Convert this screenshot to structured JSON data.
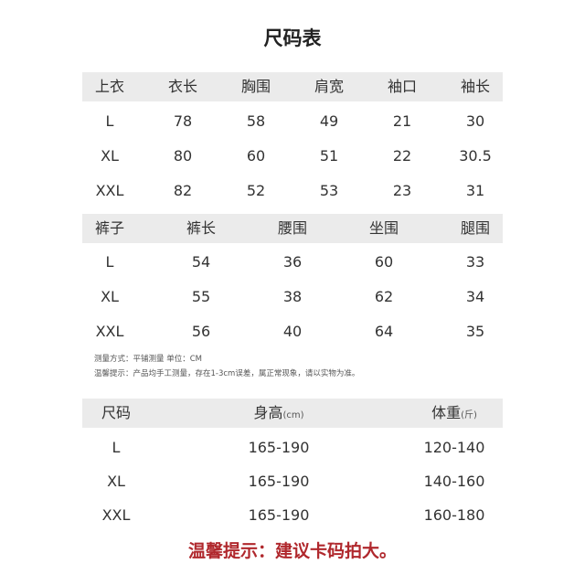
{
  "title": "尺码表",
  "top_table": {
    "headers": [
      "上衣",
      "衣长",
      "胸围",
      "肩宽",
      "袖口",
      "袖长"
    ],
    "rows": [
      [
        "L",
        "78",
        "58",
        "49",
        "21",
        "30"
      ],
      [
        "XL",
        "80",
        "60",
        "51",
        "22",
        "30.5"
      ],
      [
        "XXL",
        "82",
        "52",
        "53",
        "23",
        "31"
      ]
    ]
  },
  "pants_table": {
    "headers": [
      "裤子",
      "裤长",
      "腰围",
      "坐围",
      "腿围"
    ],
    "rows": [
      [
        "L",
        "54",
        "36",
        "60",
        "33"
      ],
      [
        "XL",
        "55",
        "38",
        "62",
        "34"
      ],
      [
        "XXL",
        "56",
        "40",
        "64",
        "35"
      ]
    ]
  },
  "notes": [
    "测量方式：平铺测量 单位：CM",
    "温馨提示：产品均手工测量，存在1-3cm误差，属正常现象，请以实物为准。"
  ],
  "fit_table": {
    "headers": [
      "尺码",
      "身高",
      "体重"
    ],
    "units": [
      "",
      "(cm)",
      "(斤)"
    ],
    "rows": [
      [
        "L",
        "165-190",
        "120-140"
      ],
      [
        "XL",
        "165-190",
        "140-160"
      ],
      [
        "XXL",
        "165-190",
        "160-180"
      ]
    ]
  },
  "footer": "温馨提示：建议卡码拍大。",
  "colors": {
    "header_band": "#ebebeb",
    "footer_text": "#b0282d"
  }
}
